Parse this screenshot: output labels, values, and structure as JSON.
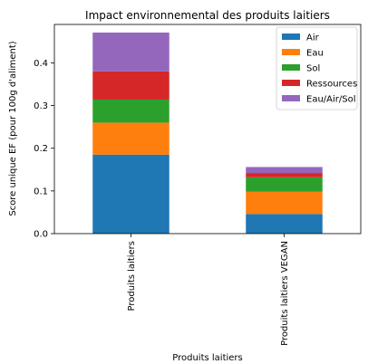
{
  "chart_data": {
    "type": "bar",
    "stacked": true,
    "title": "Impact environnemental des produits laitiers",
    "xlabel": "Produits laitiers",
    "ylabel": "Score unique EF (pour 100g d'aliment)",
    "categories": [
      "Produits laitiers",
      "Produits laitiers VEGAN"
    ],
    "series": [
      {
        "name": "Air",
        "color": "#1f77b4",
        "values": [
          0.185,
          0.046
        ]
      },
      {
        "name": "Eau",
        "color": "#ff7f0e",
        "values": [
          0.075,
          0.052
        ]
      },
      {
        "name": "Sol",
        "color": "#2ca02c",
        "values": [
          0.054,
          0.034
        ]
      },
      {
        "name": "Ressources",
        "color": "#d62728",
        "values": [
          0.066,
          0.01
        ]
      },
      {
        "name": "Eau/Air/Sol",
        "color": "#9467bd",
        "values": [
          0.091,
          0.014
        ]
      }
    ],
    "ylim": [
      0,
      0.49
    ],
    "yticks": [
      "0.0",
      "0.1",
      "0.2",
      "0.3",
      "0.4"
    ],
    "grid": false,
    "legend_position": "top-right"
  }
}
